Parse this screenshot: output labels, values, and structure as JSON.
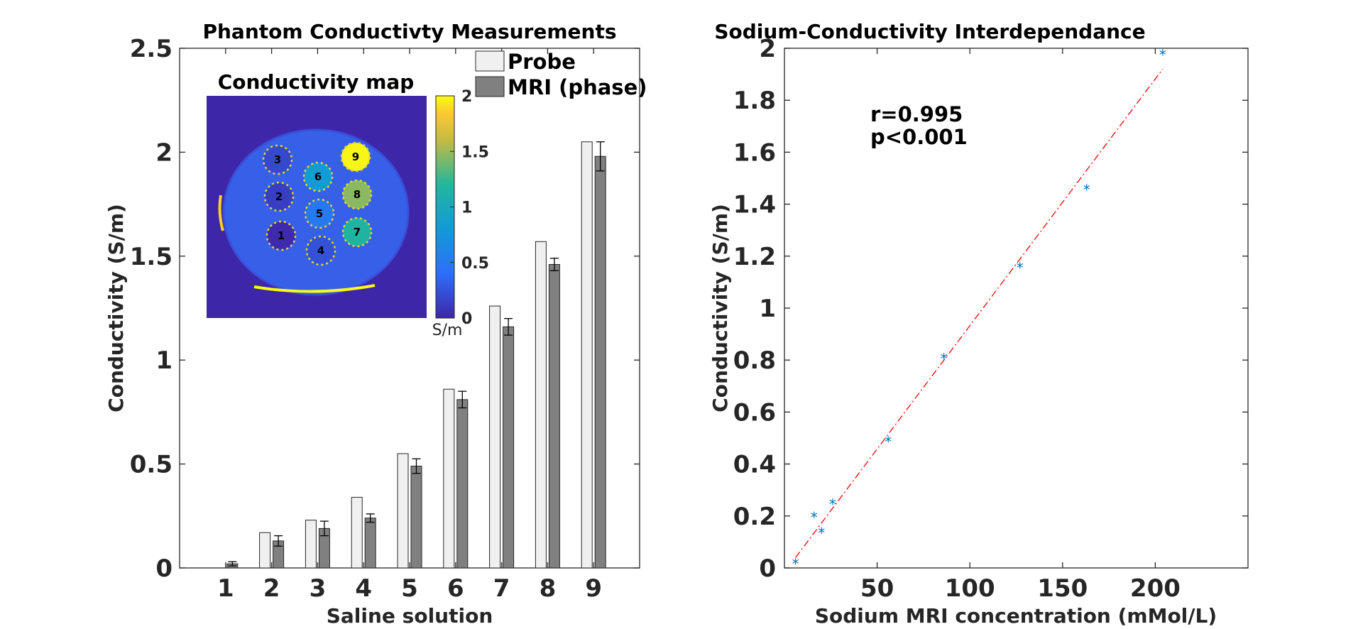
{
  "colors": {
    "probe": "#f0f0f0",
    "mri": "#808080",
    "scatter": "#0072bd",
    "fit": "#ff0000",
    "axis": "#262626",
    "map_background": "#3e26a8"
  },
  "chart_data": [
    {
      "type": "bar",
      "title": "Phantom Conductivty Measurements",
      "xlabel": "Saline solution",
      "ylabel": "Conductivity (S/m)",
      "categories": [
        "1",
        "2",
        "3",
        "4",
        "5",
        "6",
        "7",
        "8",
        "9"
      ],
      "ylim": [
        0,
        2.5
      ],
      "yticks": [
        0,
        0.5,
        1,
        1.5,
        2,
        2.5
      ],
      "ytick_labels": [
        "0",
        "0.5",
        "1",
        "1.5",
        "2",
        "2.5"
      ],
      "legend_position": "top-right",
      "series": [
        {
          "name": "Probe",
          "values": [
            0,
            0.17,
            0.23,
            0.34,
            0.55,
            0.86,
            1.26,
            1.57,
            2.05
          ]
        },
        {
          "name": "MRI (phase)",
          "values": [
            0.02,
            0.13,
            0.19,
            0.24,
            0.49,
            0.81,
            1.16,
            1.46,
            1.98
          ],
          "errors": [
            0.01,
            0.025,
            0.035,
            0.02,
            0.035,
            0.04,
            0.04,
            0.03,
            0.07
          ]
        }
      ],
      "inset": {
        "title": "Conductivity map",
        "colorbar": {
          "range": [
            0,
            2
          ],
          "ticks": [
            0,
            0.5,
            1,
            1.5,
            2
          ],
          "tick_labels": [
            "0",
            "0.5",
            "1",
            "1.5",
            "2"
          ],
          "unit": "S/m"
        },
        "wells": [
          {
            "label": "1",
            "value": 0.02
          },
          {
            "label": "2",
            "value": 0.13
          },
          {
            "label": "3",
            "value": 0.19
          },
          {
            "label": "4",
            "value": 0.24
          },
          {
            "label": "5",
            "value": 0.49
          },
          {
            "label": "6",
            "value": 0.81
          },
          {
            "label": "7",
            "value": 1.16
          },
          {
            "label": "8",
            "value": 1.46
          },
          {
            "label": "9",
            "value": 1.98
          }
        ]
      }
    },
    {
      "type": "scatter",
      "title": "Sodium-Conductivity Interdependance",
      "xlabel": "Sodium MRI concentration (mMol/L)",
      "ylabel": "Conductivity (S/m)",
      "xlim": [
        0,
        250
      ],
      "xticks": [
        50,
        100,
        150,
        200
      ],
      "xtick_labels": [
        "50",
        "100",
        "150",
        "200"
      ],
      "ylim": [
        0,
        2
      ],
      "yticks": [
        0,
        0.2,
        0.4,
        0.6,
        0.8,
        1,
        1.2,
        1.4,
        1.6,
        1.8,
        2
      ],
      "ytick_labels": [
        "0",
        "0.2",
        "0.4",
        "0.6",
        "0.8",
        "1",
        "1.2",
        "1.4",
        "1.6",
        "1.8",
        "2"
      ],
      "x": [
        6,
        16,
        20,
        26,
        56,
        86,
        127,
        163,
        204
      ],
      "y": [
        0.02,
        0.2,
        0.14,
        0.25,
        0.49,
        0.81,
        1.16,
        1.46,
        1.98
      ],
      "fit": {
        "x": [
          6,
          204
        ],
        "y": [
          0.04,
          1.92
        ]
      },
      "annotations": [
        "r=0.995",
        "p<0.001"
      ]
    }
  ]
}
